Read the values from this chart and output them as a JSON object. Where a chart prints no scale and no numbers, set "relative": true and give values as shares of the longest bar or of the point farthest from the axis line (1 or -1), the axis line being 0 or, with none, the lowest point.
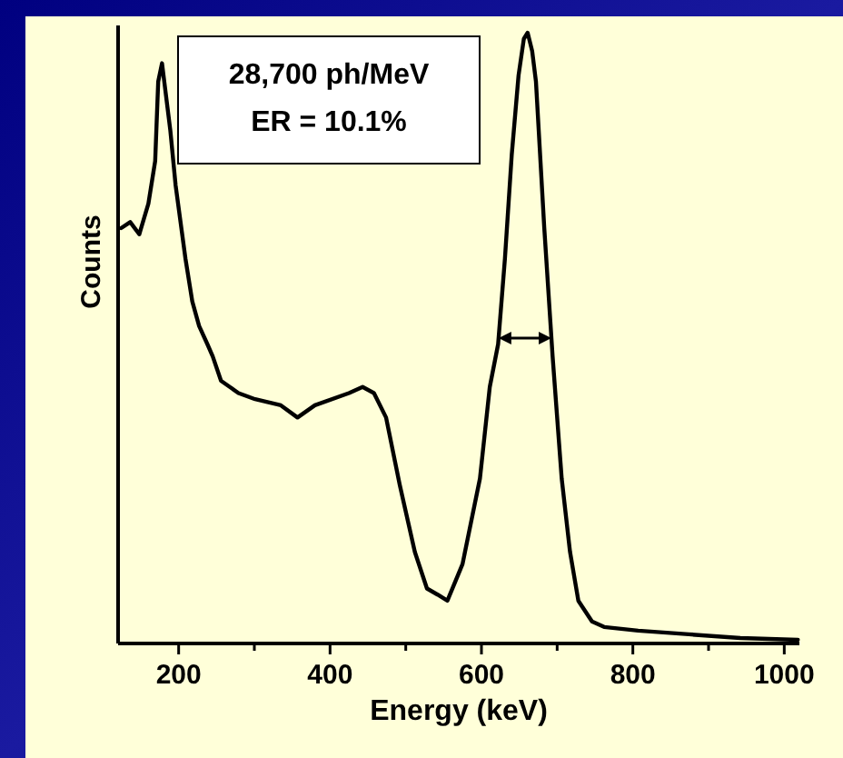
{
  "chart_data": {
    "type": "line",
    "relative": true,
    "xlabel": "Energy (keV)",
    "ylabel": "Counts",
    "annotations": [
      "28,700 ph/MeV",
      "ER = 10.1%"
    ],
    "xlim": [
      120,
      1020
    ],
    "xticks": [
      200,
      {
        "value": 300,
        "label": null
      },
      400,
      {
        "value": 500,
        "label": null
      },
      600,
      {
        "value": 700,
        "label": null
      },
      800,
      {
        "value": 900,
        "label": null
      },
      1000
    ],
    "marker": "none",
    "line_style": "solid",
    "series": [
      {
        "color": "#000000",
        "x": [
          124,
          136,
          148,
          160,
          169,
          173,
          178,
          182,
          189,
          196,
          209,
          218,
          227,
          238,
          245,
          256,
          279,
          301,
          335,
          357,
          380,
          425,
          443,
          458,
          474,
          492,
          512,
          528,
          542,
          555,
          575,
          598,
          611,
          622,
          631,
          640,
          649,
          656,
          661,
          667,
          672,
          683,
          694,
          706,
          717,
          728,
          746,
          762,
          807,
          874,
          942,
          1018
        ],
        "values": [
          0.68,
          0.69,
          0.67,
          0.72,
          0.79,
          0.92,
          0.95,
          0.91,
          0.84,
          0.75,
          0.63,
          0.56,
          0.52,
          0.49,
          0.47,
          0.43,
          0.41,
          0.4,
          0.39,
          0.37,
          0.39,
          0.41,
          0.42,
          0.41,
          0.37,
          0.26,
          0.15,
          0.09,
          0.08,
          0.07,
          0.13,
          0.27,
          0.42,
          0.49,
          0.63,
          0.8,
          0.93,
          0.99,
          1,
          0.97,
          0.92,
          0.68,
          0.47,
          0.27,
          0.15,
          0.07,
          0.036,
          0.027,
          0.021,
          0.015,
          0.009,
          0.006
        ]
      }
    ]
  }
}
